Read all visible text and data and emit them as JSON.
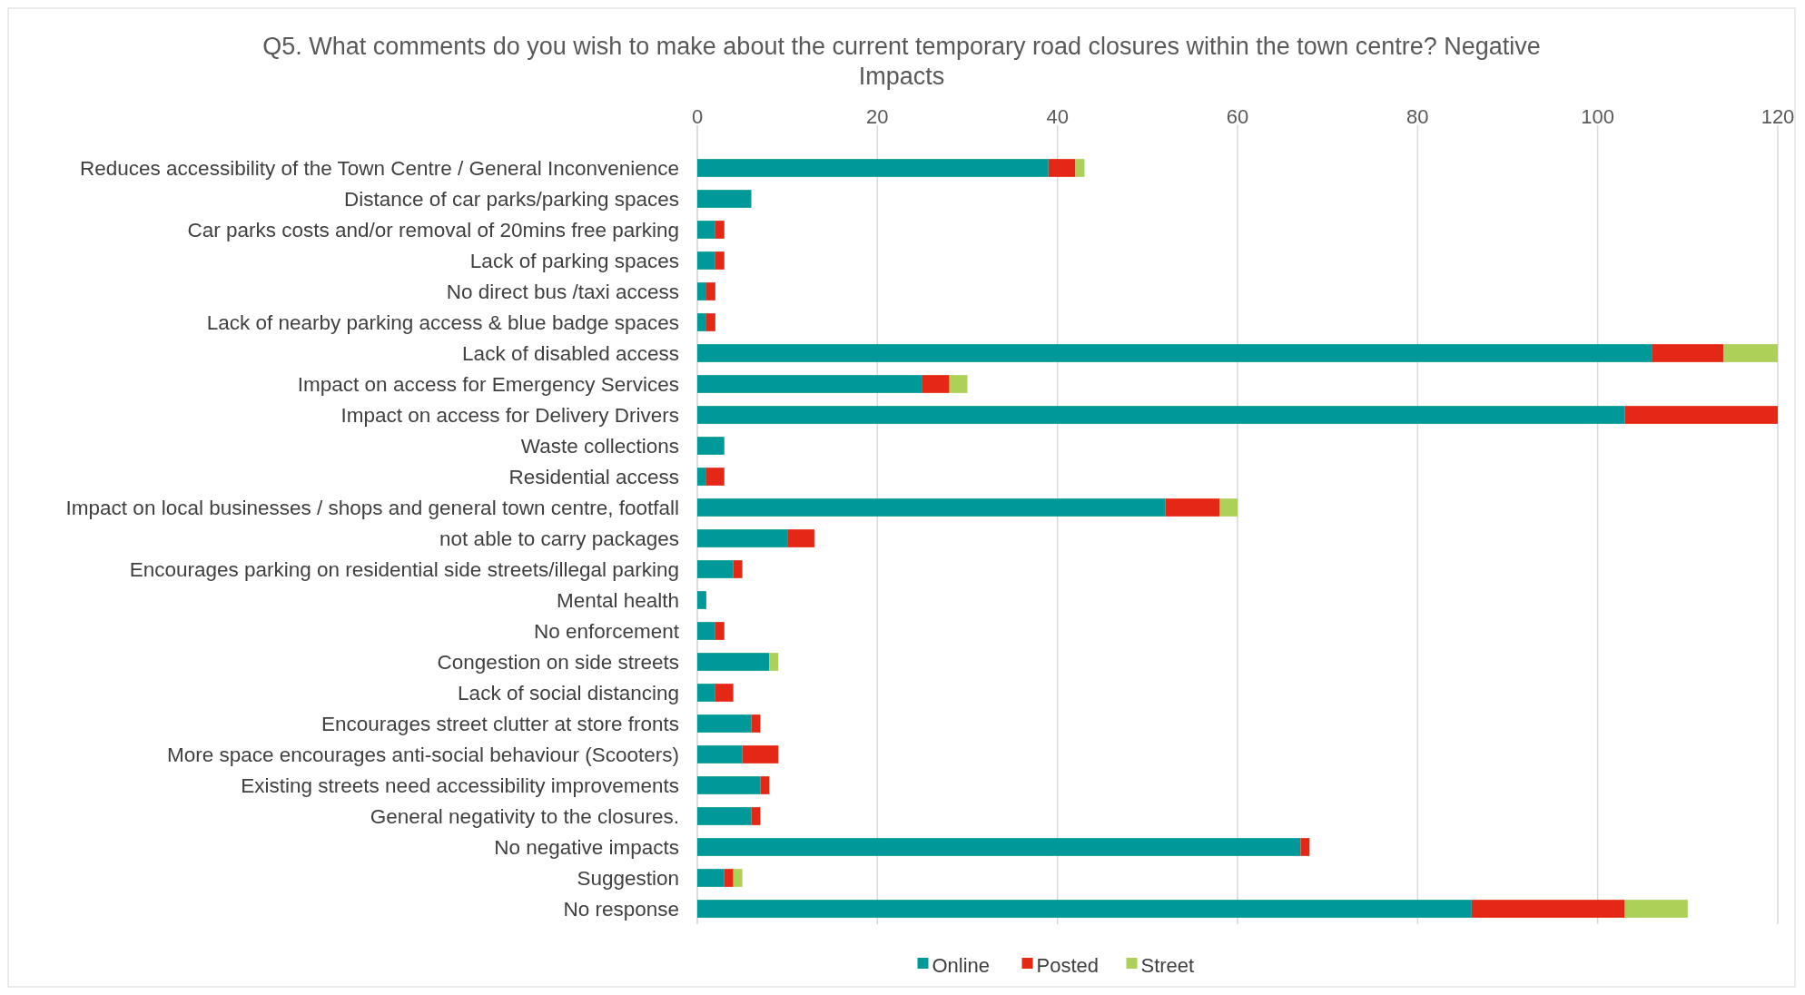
{
  "chart_data": {
    "type": "bar",
    "orientation": "horizontal",
    "stacked": true,
    "title": "Q5. What comments do you wish to make about the current temporary road closures within the town centre?  Negative Impacts",
    "categories": [
      "Reduces accessibility of the Town Centre / General Inconvenience",
      "Distance of car parks/parking spaces",
      "Car parks costs and/or removal of 20mins free parking",
      "Lack of parking spaces",
      "No direct bus /taxi access",
      "Lack of nearby parking access & blue badge spaces",
      "Lack of disabled access",
      "Impact on access for Emergency Services",
      "Impact on access for Delivery Drivers",
      "Waste collections",
      "Residential access",
      "Impact on local businesses / shops and general town centre, footfall",
      "not able to carry packages",
      "Encourages parking on residential side streets/illegal parking",
      "Mental health",
      "No enforcement",
      "Congestion on side streets",
      "Lack of social distancing",
      "Encourages street clutter at store fronts",
      "More space encourages anti-social behaviour (Scooters)",
      "Existing streets need accessibility improvements",
      "General negativity to the closures.",
      "No negative impacts",
      "Suggestion",
      "No response"
    ],
    "series": [
      {
        "name": "Online",
        "color": "#009999",
        "values": [
          39,
          6,
          2,
          2,
          1,
          1,
          106,
          25,
          103,
          3,
          1,
          52,
          10,
          4,
          1,
          2,
          8,
          2,
          6,
          5,
          7,
          6,
          67,
          3,
          86
        ]
      },
      {
        "name": "Posted",
        "color": "#e52815",
        "values": [
          3,
          0,
          1,
          1,
          1,
          1,
          8,
          3,
          17,
          0,
          2,
          6,
          3,
          1,
          0,
          1,
          0,
          2,
          1,
          4,
          1,
          1,
          1,
          1,
          17
        ]
      },
      {
        "name": "Street",
        "color": "#add058",
        "values": [
          1,
          0,
          0,
          0,
          0,
          0,
          6,
          2,
          0,
          0,
          0,
          2,
          0,
          0,
          0,
          0,
          1,
          0,
          0,
          0,
          0,
          0,
          0,
          1,
          7
        ]
      }
    ],
    "xlim": [
      0,
      120
    ],
    "xticks": [
      0,
      20,
      40,
      60,
      80,
      100,
      120
    ],
    "grid": "x",
    "legend": "bottom"
  }
}
